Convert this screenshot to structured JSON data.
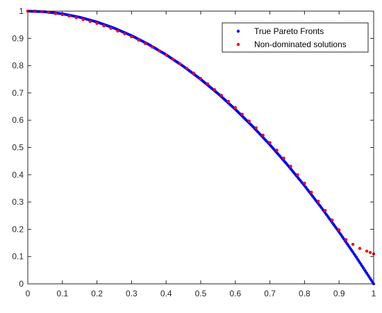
{
  "chart_data": {
    "type": "scatter",
    "title": "",
    "xlabel": "",
    "ylabel": "",
    "xlim": [
      0,
      1
    ],
    "ylim": [
      0,
      1
    ],
    "xticks": [
      "0",
      "0.1",
      "0.2",
      "0.3",
      "0.4",
      "0.5",
      "0.6",
      "0.7",
      "0.8",
      "0.9",
      "1"
    ],
    "yticks": [
      "0",
      "0.1",
      "0.2",
      "0.3",
      "0.4",
      "0.5",
      "0.6",
      "0.7",
      "0.8",
      "0.9",
      "1"
    ],
    "grid": false,
    "legend": "top-right",
    "series": [
      {
        "name": "True Pareto Fronts",
        "color": "#0000ff",
        "marker": "dense-dots",
        "curve": "y = 1 - x^2",
        "x": [
          0,
          0.05,
          0.1,
          0.15,
          0.2,
          0.25,
          0.3,
          0.35,
          0.4,
          0.45,
          0.5,
          0.55,
          0.6,
          0.65,
          0.7,
          0.75,
          0.8,
          0.85,
          0.9,
          0.95,
          1.0
        ],
        "y": [
          1.0,
          0.9975,
          0.99,
          0.9775,
          0.96,
          0.9375,
          0.91,
          0.8775,
          0.84,
          0.7975,
          0.75,
          0.6975,
          0.64,
          0.5775,
          0.51,
          0.4375,
          0.36,
          0.2775,
          0.19,
          0.0975,
          0.0
        ]
      },
      {
        "name": "Non-dominated solutions",
        "color": "#ff0000",
        "marker": "dot",
        "x": [
          0.0,
          0.02,
          0.04,
          0.06,
          0.08,
          0.1,
          0.12,
          0.14,
          0.16,
          0.18,
          0.2,
          0.22,
          0.24,
          0.26,
          0.28,
          0.3,
          0.32,
          0.34,
          0.36,
          0.38,
          0.4,
          0.42,
          0.44,
          0.46,
          0.48,
          0.5,
          0.52,
          0.54,
          0.56,
          0.58,
          0.6,
          0.62,
          0.64,
          0.66,
          0.68,
          0.7,
          0.72,
          0.74,
          0.76,
          0.78,
          0.8,
          0.82,
          0.84,
          0.86,
          0.88,
          0.9,
          0.92,
          0.94,
          0.96,
          0.98,
          0.99,
          1.0
        ],
        "y": [
          1.0,
          1.0,
          0.998,
          0.995,
          0.991,
          0.987,
          0.982,
          0.976,
          0.969,
          0.962,
          0.955,
          0.946,
          0.937,
          0.927,
          0.917,
          0.906,
          0.894,
          0.881,
          0.868,
          0.854,
          0.839,
          0.823,
          0.807,
          0.79,
          0.772,
          0.753,
          0.733,
          0.712,
          0.691,
          0.669,
          0.646,
          0.622,
          0.597,
          0.572,
          0.545,
          0.518,
          0.49,
          0.461,
          0.431,
          0.4,
          0.369,
          0.336,
          0.303,
          0.269,
          0.234,
          0.198,
          0.162,
          0.145,
          0.13,
          0.12,
          0.115,
          0.11
        ]
      }
    ]
  }
}
